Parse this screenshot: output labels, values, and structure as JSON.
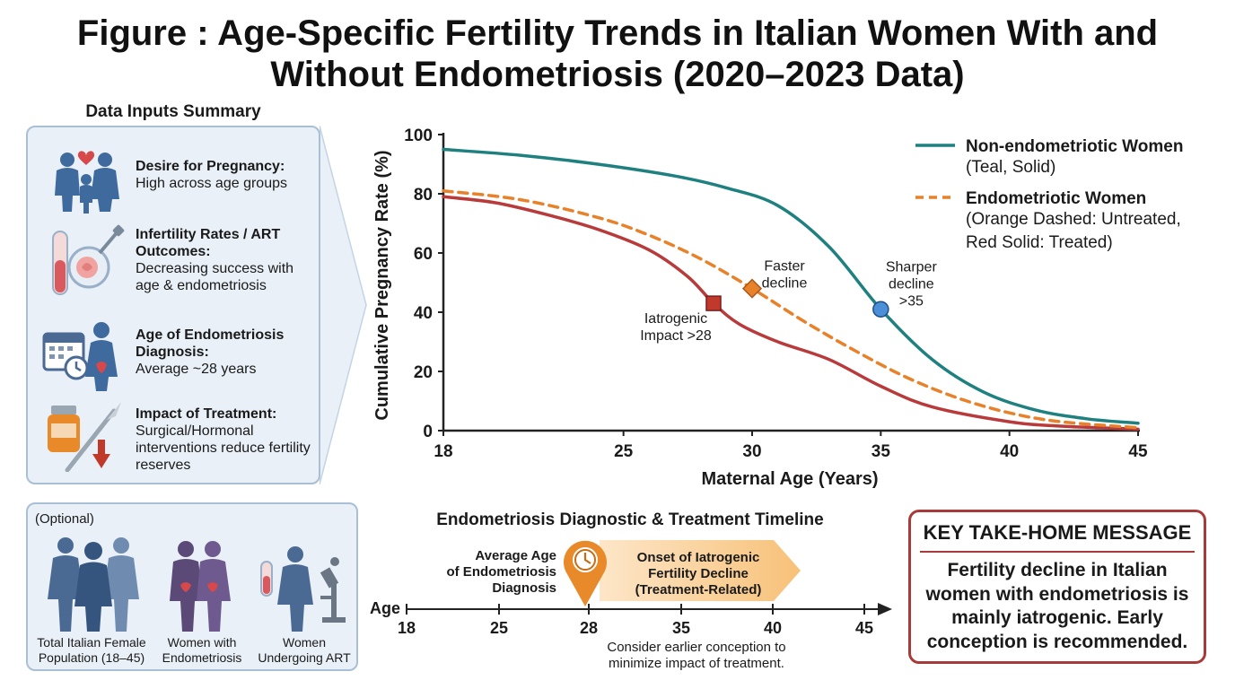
{
  "title": "Figure : Age-Specific Fertility Trends in Italian Women With and Without Endometriosis (2020–2023 Data)",
  "summary": {
    "heading": "Data Inputs Summary",
    "items": [
      {
        "icon": "family-heart-icon",
        "title": "Desire for Pregnancy:",
        "text": "High across age groups"
      },
      {
        "icon": "test-tube-embryo-icon",
        "title": "Infertility Rates / ART Outcomes:",
        "text": "Decreasing success with age & endometriosis"
      },
      {
        "icon": "calendar-woman-icon",
        "title": "Age of Endometriosis Diagnosis:",
        "text": "Average ~28 years"
      },
      {
        "icon": "pill-bottle-scalpel-icon",
        "title": "Impact of Treatment:",
        "text": "Surgical/Hormonal interventions reduce fertility reserves"
      }
    ]
  },
  "optional": {
    "label": "(Optional)",
    "groups": [
      {
        "icon": "women-group-icon",
        "caption": "Total Italian Female Population (18–45)",
        "color": "#4a6a94"
      },
      {
        "icon": "women-endometriosis-icon",
        "caption": "Women with Endometriosis",
        "color": "#5b4a78"
      },
      {
        "icon": "woman-art-icon",
        "caption": "Women Undergoing ART",
        "color": "#4a6a94"
      }
    ]
  },
  "chart_data": {
    "type": "line",
    "title": "",
    "xlabel": "Maternal Age (Years)",
    "ylabel": "Cumulative Pregnancy Rate (%)",
    "xlim": [
      18,
      45
    ],
    "ylim": [
      0,
      100
    ],
    "xticks": [
      18,
      25,
      30,
      35,
      40,
      45
    ],
    "yticks": [
      0,
      20,
      40,
      60,
      80,
      100
    ],
    "grid": false,
    "legend_position": "top-right",
    "series": [
      {
        "name": "Non-endometriotic Women",
        "description": "(Teal, Solid)",
        "color": "#1f8080",
        "style": "solid",
        "x": [
          18,
          21,
          24,
          27,
          29,
          31,
          33,
          35,
          37,
          39,
          41,
          43,
          45
        ],
        "y": [
          95,
          93,
          90,
          86,
          82,
          76,
          62,
          41,
          24,
          13,
          7,
          4,
          2.5
        ]
      },
      {
        "name": "Endometriotic Women",
        "description": "(Orange Dashed: Untreated, Red Solid: Treated)",
        "label": "Untreated",
        "color": "#e8822a",
        "style": "dashed",
        "x": [
          18,
          21,
          24,
          26,
          28,
          30,
          32,
          34,
          36,
          38,
          40,
          42,
          45
        ],
        "y": [
          81,
          78,
          72,
          66,
          58,
          48,
          37,
          27,
          18,
          11,
          6,
          3,
          1
        ]
      },
      {
        "label": "Treated",
        "color": "#b83a3a",
        "style": "solid",
        "x": [
          18,
          20,
          22,
          24,
          26,
          27.5,
          28.5,
          29.5,
          31,
          33,
          35,
          37,
          40,
          42,
          45
        ],
        "y": [
          79,
          77,
          73,
          68,
          61,
          52,
          43,
          36,
          30,
          24,
          15,
          8,
          3,
          1.5,
          0.5
        ]
      }
    ],
    "markers": [
      {
        "series": 2,
        "x": 28.5,
        "y": 43,
        "shape": "square",
        "color": "#c0392b",
        "label_lines": [
          "Iatrogenic",
          "Impact >28"
        ]
      },
      {
        "series": 1,
        "x": 30,
        "y": 48,
        "shape": "diamond",
        "color": "#e8822a",
        "label_lines": [
          "Faster",
          "decline"
        ]
      },
      {
        "series": 0,
        "x": 35,
        "y": 41,
        "shape": "circle",
        "color": "#4a8fd8",
        "label_lines": [
          "Sharper",
          "decline",
          ">35"
        ]
      }
    ]
  },
  "timeline": {
    "title": "Endometriosis Diagnostic & Treatment Timeline",
    "axis_label": "Age",
    "ticks": [
      "18",
      "25",
      "28",
      "35",
      "40",
      "45"
    ],
    "diagnosis_lines": [
      "Average Age",
      "of Endometriosis",
      "Diagnosis"
    ],
    "decline_lines": [
      "Onset of Iatrogenic",
      "Fertility Decline",
      "(Treatment-Related)"
    ],
    "note_lines": [
      "Consider earlier conception to",
      "minimize impact of treatment."
    ],
    "pin_color": "#e88a2a"
  },
  "takehome": {
    "heading": "KEY TAKE-HOME MESSAGE",
    "body": "Fertility decline in Italian women with endometriosis is mainly iatrogenic. Early conception is recommended."
  }
}
